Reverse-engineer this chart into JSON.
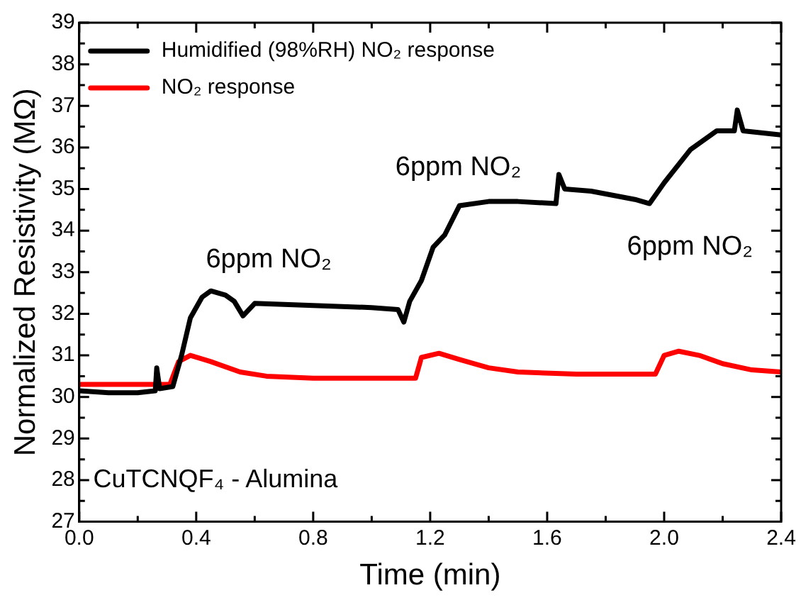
{
  "chart_data": {
    "type": "line",
    "xlabel": "Time (min)",
    "ylabel": "Normalized Resistivity (MΩ)",
    "xlim": [
      0,
      2.4
    ],
    "ylim": [
      27,
      39
    ],
    "xticks": [
      {
        "value": 0,
        "label": "0.0"
      },
      {
        "value": 0.2,
        "label": null
      },
      {
        "value": 0.4,
        "label": "0.4"
      },
      {
        "value": 0.6,
        "label": null
      },
      {
        "value": 0.8,
        "label": "0.8"
      },
      {
        "value": 1.0,
        "label": null
      },
      {
        "value": 1.2,
        "label": "1.2"
      },
      {
        "value": 1.4,
        "label": null
      },
      {
        "value": 1.6,
        "label": "1.6"
      },
      {
        "value": 1.8,
        "label": null
      },
      {
        "value": 2.0,
        "label": "2.0"
      },
      {
        "value": 2.2,
        "label": null
      },
      {
        "value": 2.4,
        "label": "2.4"
      }
    ],
    "yticks": [
      27,
      28,
      29,
      30,
      31,
      32,
      33,
      34,
      35,
      36,
      37,
      38,
      39
    ],
    "grid": false,
    "legend": "top left",
    "marker": "none",
    "line_style": "solid",
    "series": [
      {
        "name": "Humidified (98%RH) NO₂ response",
        "color": "#000000",
        "x": [
          0,
          0.1,
          0.2,
          0.26,
          0.265,
          0.275,
          0.32,
          0.35,
          0.38,
          0.42,
          0.45,
          0.5,
          0.53,
          0.56,
          0.6,
          0.8,
          1.0,
          1.09,
          1.11,
          1.13,
          1.17,
          1.21,
          1.25,
          1.3,
          1.4,
          1.5,
          1.63,
          1.64,
          1.66,
          1.75,
          1.9,
          1.95,
          2.0,
          2.09,
          2.18,
          2.24,
          2.25,
          2.27,
          2.4
        ],
        "values": [
          30.15,
          30.1,
          30.1,
          30.15,
          30.7,
          30.2,
          30.25,
          31.0,
          31.9,
          32.4,
          32.55,
          32.45,
          32.3,
          31.95,
          32.25,
          32.2,
          32.15,
          32.1,
          31.8,
          32.3,
          32.8,
          33.6,
          33.9,
          34.6,
          34.7,
          34.7,
          34.65,
          35.35,
          35.0,
          34.95,
          34.75,
          34.65,
          35.15,
          35.95,
          36.4,
          36.4,
          36.9,
          36.4,
          36.3
        ]
      },
      {
        "name": "NO₂ response",
        "color": "#ff0000",
        "x": [
          0,
          0.31,
          0.34,
          0.38,
          0.45,
          0.55,
          0.64,
          0.8,
          1.1,
          1.15,
          1.17,
          1.23,
          1.3,
          1.4,
          1.5,
          1.7,
          1.97,
          2.0,
          2.05,
          2.12,
          2.2,
          2.3,
          2.4
        ],
        "values": [
          30.3,
          30.3,
          30.85,
          31.0,
          30.85,
          30.6,
          30.5,
          30.45,
          30.45,
          30.45,
          30.95,
          31.05,
          30.9,
          30.7,
          30.6,
          30.55,
          30.55,
          31.0,
          31.1,
          31.0,
          30.8,
          30.65,
          30.6
        ]
      }
    ],
    "annotations": [
      "6ppm NO₂",
      "6ppm NO₂",
      "6ppm NO₂",
      "CuTCNQF₄ - Alumina"
    ]
  }
}
